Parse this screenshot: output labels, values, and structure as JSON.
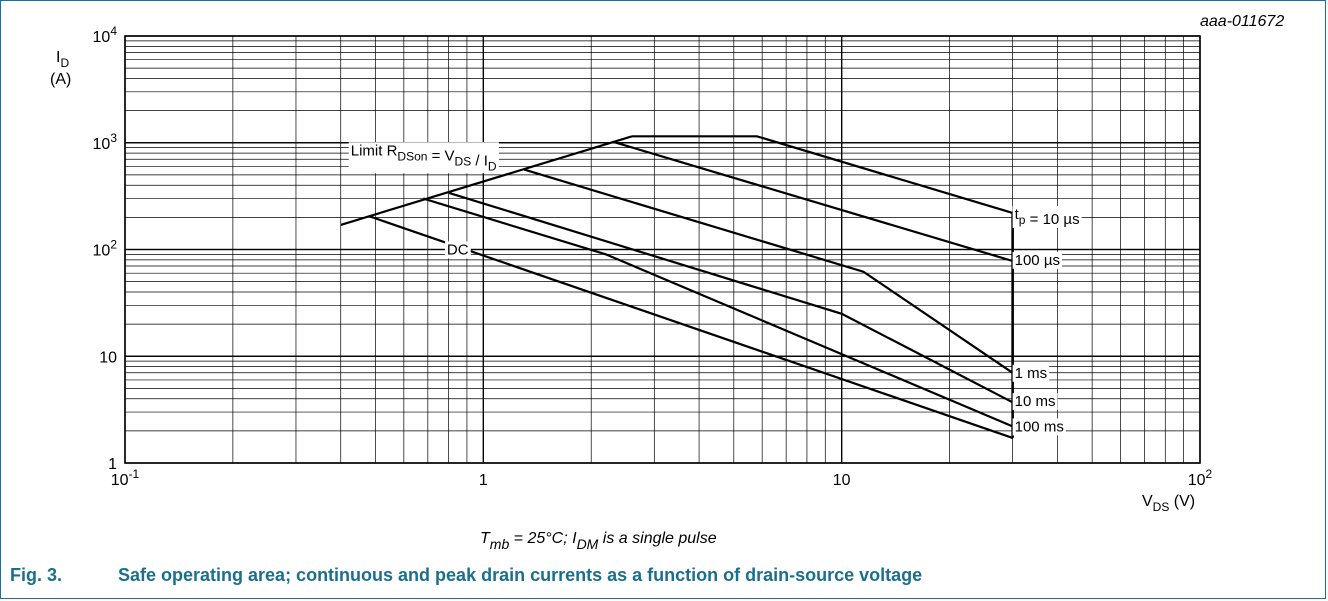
{
  "figure": {
    "code": "aaa-011672",
    "number": "Fig. 3.",
    "title": "Safe operating area; continuous and peak drain currents as a function of drain-source voltage"
  },
  "chart_data": {
    "type": "line",
    "title": "",
    "xscale": "log",
    "yscale": "log",
    "xlim": [
      0.1,
      100
    ],
    "ylim": [
      1,
      10000
    ],
    "grid": true,
    "xlabel": {
      "main": "V",
      "sub": "DS",
      "unit": "(V)"
    },
    "ylabel": {
      "main": "I",
      "sub": "D",
      "unit": "(A)"
    },
    "xticks": [
      {
        "value": 0.1,
        "base": "10",
        "exp": "-1"
      },
      {
        "value": 1,
        "base": "1",
        "exp": ""
      },
      {
        "value": 10,
        "base": "10",
        "exp": ""
      },
      {
        "value": 100,
        "base": "10",
        "exp": "2"
      }
    ],
    "yticks": [
      {
        "value": 1,
        "base": "1",
        "exp": ""
      },
      {
        "value": 10,
        "base": "10",
        "exp": ""
      },
      {
        "value": 100,
        "base": "10",
        "exp": "2"
      },
      {
        "value": 1000,
        "base": "10",
        "exp": "3"
      },
      {
        "value": 10000,
        "base": "10",
        "exp": "4"
      }
    ],
    "condition": {
      "t": "T",
      "tsub": "mb",
      "eq": " = 25°C;  ",
      "i": "I",
      "isub": "DM",
      "rest": " is a single pulse"
    },
    "limit_line": {
      "name": "Limit R_DSon = V_DS / I_D",
      "label": {
        "a": "Limit R",
        "a_sub": "DSon",
        "b": " = V",
        "b_sub": "DS",
        "c": " / I",
        "c_sub": "D"
      },
      "label_anchor": [
        0.4,
        850
      ],
      "points": [
        [
          0.4,
          170
        ],
        [
          2.6,
          1150
        ]
      ]
    },
    "series": [
      {
        "name": "t_p = 10 µs",
        "label": {
          "a": "t",
          "a_sub": "p",
          "b": " = 10 µs"
        },
        "label_at": [
          30,
          215
        ],
        "points": [
          [
            2.6,
            1150
          ],
          [
            5.8,
            1150
          ],
          [
            30,
            220
          ]
        ]
      },
      {
        "name": "100 µs",
        "label": {
          "a": "100 µs"
        },
        "label_at": [
          30,
          80
        ],
        "points": [
          [
            2.3,
            1020
          ],
          [
            30,
            78
          ]
        ]
      },
      {
        "name": "1 ms",
        "label": {
          "a": "1 ms"
        },
        "label_at": [
          30,
          7
        ],
        "points": [
          [
            1.3,
            560
          ],
          [
            11.5,
            62
          ],
          [
            30,
            7
          ]
        ]
      },
      {
        "name": "10 ms",
        "label": {
          "a": "10 ms"
        },
        "label_at": [
          30,
          3.8
        ],
        "points": [
          [
            0.8,
            340
          ],
          [
            10,
            25
          ],
          [
            30,
            3.7
          ]
        ]
      },
      {
        "name": "100 ms",
        "label": {
          "a": "100 ms"
        },
        "label_at": [
          30,
          2.2
        ],
        "points": [
          [
            0.68,
            300
          ],
          [
            2.2,
            90
          ],
          [
            30,
            2.2
          ]
        ]
      },
      {
        "name": "DC",
        "label": {
          "a": "DC"
        },
        "label_at": [
          0.9,
          100
        ],
        "points": [
          [
            0.48,
            205
          ],
          [
            30,
            1.72
          ]
        ]
      }
    ],
    "boundary": {
      "x": 30,
      "y": [
        1.72,
        220
      ]
    }
  }
}
